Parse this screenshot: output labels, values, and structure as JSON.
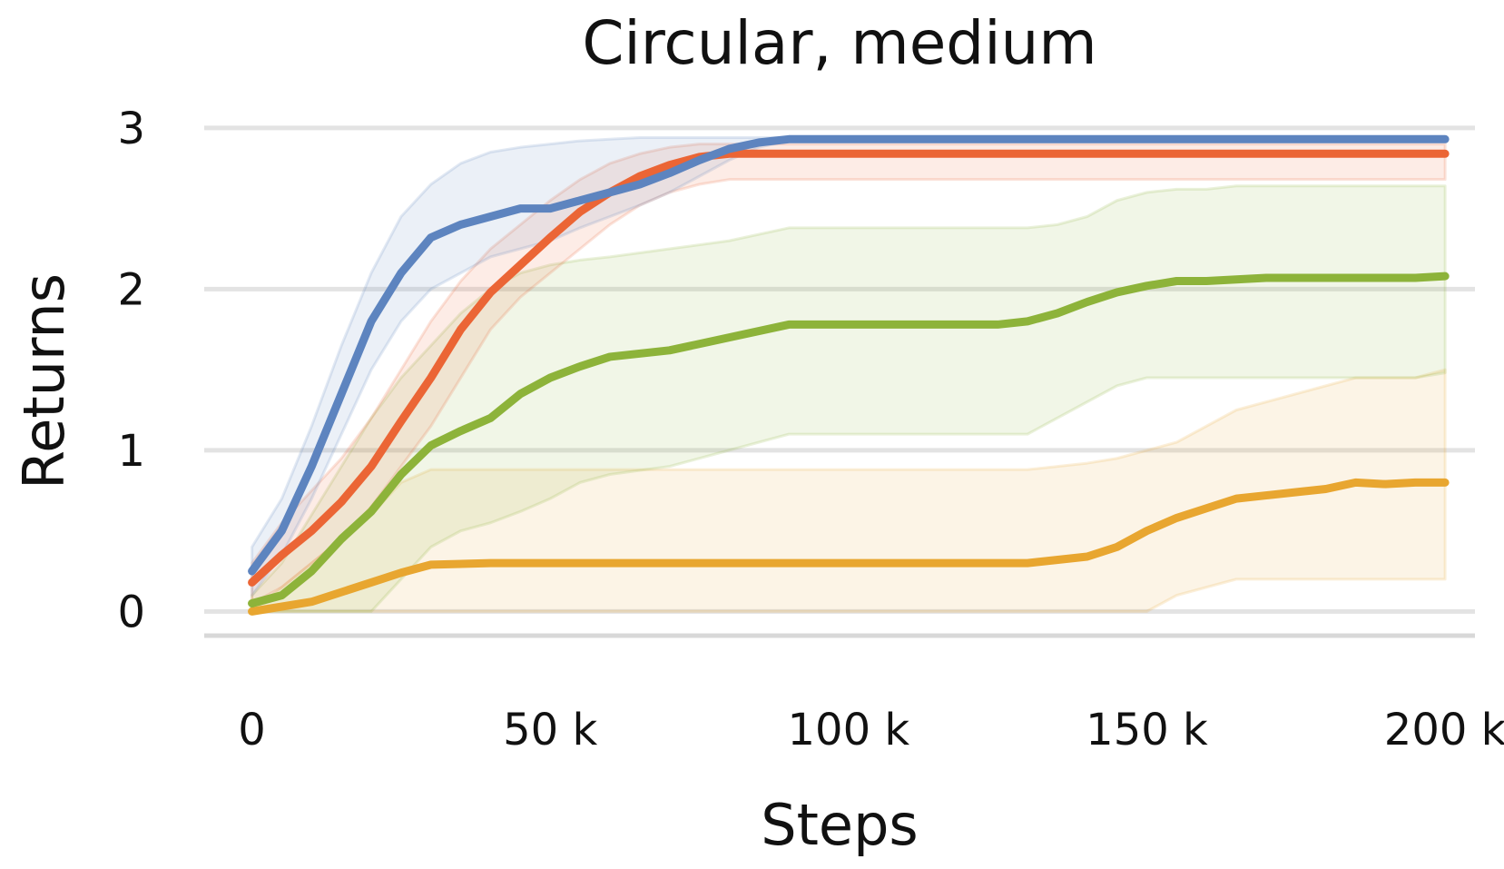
{
  "chart_data": {
    "type": "line",
    "title": "Circular, medium",
    "xlabel": "Steps",
    "ylabel": "Returns",
    "xlim": [
      -8000,
      205000
    ],
    "ylim": [
      -0.15,
      3.05
    ],
    "x_ticks": [
      0,
      50000,
      100000,
      150000,
      200000
    ],
    "x_tick_labels": [
      "0",
      "50 k",
      "100 k",
      "150 k",
      "200 k"
    ],
    "y_ticks": [
      0,
      1,
      2,
      3
    ],
    "y_tick_labels": [
      "0",
      "1",
      "2",
      "3"
    ],
    "grid": true,
    "legend": "none",
    "series": [
      {
        "color": "#e8a630",
        "x": [
          0,
          10000,
          20000,
          25000,
          30000,
          40000,
          50000,
          70000,
          90000,
          110000,
          130000,
          140000,
          145000,
          150000,
          155000,
          160000,
          165000,
          170000,
          175000,
          180000,
          185000,
          190000,
          195000,
          200000
        ],
        "y": [
          0.0,
          0.06,
          0.18,
          0.24,
          0.29,
          0.3,
          0.3,
          0.3,
          0.3,
          0.3,
          0.3,
          0.34,
          0.4,
          0.5,
          0.58,
          0.64,
          0.7,
          0.72,
          0.74,
          0.76,
          0.8,
          0.79,
          0.8,
          0.8
        ],
        "lower": [
          0.0,
          0.0,
          0.0,
          0.0,
          0.0,
          0.0,
          0.0,
          0.0,
          0.0,
          0.0,
          0.0,
          0.0,
          0.0,
          0.0,
          0.1,
          0.15,
          0.2,
          0.2,
          0.2,
          0.2,
          0.2,
          0.2,
          0.2,
          0.2
        ],
        "upper": [
          0.0,
          0.3,
          0.6,
          0.8,
          0.88,
          0.88,
          0.88,
          0.88,
          0.88,
          0.88,
          0.88,
          0.92,
          0.95,
          1.0,
          1.05,
          1.15,
          1.25,
          1.3,
          1.35,
          1.4,
          1.45,
          1.45,
          1.45,
          1.5
        ]
      },
      {
        "color": "#8db33a",
        "x": [
          0,
          5000,
          10000,
          15000,
          20000,
          25000,
          30000,
          35000,
          40000,
          45000,
          50000,
          55000,
          60000,
          70000,
          80000,
          90000,
          100000,
          110000,
          120000,
          125000,
          130000,
          135000,
          140000,
          145000,
          150000,
          155000,
          160000,
          165000,
          170000,
          175000,
          180000,
          185000,
          190000,
          195000,
          200000
        ],
        "y": [
          0.05,
          0.1,
          0.25,
          0.45,
          0.62,
          0.85,
          1.03,
          1.12,
          1.2,
          1.35,
          1.45,
          1.52,
          1.58,
          1.62,
          1.7,
          1.78,
          1.78,
          1.78,
          1.78,
          1.78,
          1.8,
          1.85,
          1.92,
          1.98,
          2.02,
          2.05,
          2.05,
          2.06,
          2.07,
          2.07,
          2.07,
          2.07,
          2.07,
          2.07,
          2.08
        ],
        "lower": [
          0.0,
          0.0,
          0.0,
          0.0,
          0.0,
          0.2,
          0.4,
          0.5,
          0.55,
          0.62,
          0.7,
          0.8,
          0.85,
          0.9,
          1.0,
          1.1,
          1.1,
          1.1,
          1.1,
          1.1,
          1.1,
          1.2,
          1.3,
          1.4,
          1.45,
          1.45,
          1.45,
          1.45,
          1.45,
          1.45,
          1.45,
          1.45,
          1.45,
          1.45,
          1.48
        ],
        "upper": [
          0.1,
          0.3,
          0.6,
          0.9,
          1.2,
          1.45,
          1.65,
          1.85,
          2.0,
          2.1,
          2.15,
          2.18,
          2.2,
          2.25,
          2.3,
          2.38,
          2.38,
          2.38,
          2.38,
          2.38,
          2.38,
          2.4,
          2.45,
          2.55,
          2.6,
          2.62,
          2.62,
          2.64,
          2.64,
          2.64,
          2.64,
          2.64,
          2.64,
          2.64,
          2.64
        ]
      },
      {
        "color": "#eb6535",
        "x": [
          0,
          5000,
          10000,
          15000,
          20000,
          25000,
          30000,
          35000,
          40000,
          45000,
          50000,
          55000,
          60000,
          65000,
          70000,
          75000,
          80000,
          90000,
          100000,
          120000,
          140000,
          160000,
          180000,
          200000
        ],
        "y": [
          0.18,
          0.35,
          0.5,
          0.68,
          0.9,
          1.18,
          1.45,
          1.75,
          1.98,
          2.15,
          2.32,
          2.48,
          2.6,
          2.7,
          2.77,
          2.82,
          2.84,
          2.84,
          2.84,
          2.84,
          2.84,
          2.84,
          2.84,
          2.84
        ],
        "lower": [
          0.05,
          0.15,
          0.3,
          0.45,
          0.65,
          0.9,
          1.15,
          1.45,
          1.75,
          1.95,
          2.1,
          2.25,
          2.4,
          2.52,
          2.6,
          2.65,
          2.68,
          2.68,
          2.68,
          2.68,
          2.68,
          2.68,
          2.68,
          2.68
        ],
        "upper": [
          0.3,
          0.55,
          0.75,
          0.95,
          1.2,
          1.5,
          1.8,
          2.05,
          2.25,
          2.4,
          2.55,
          2.68,
          2.78,
          2.84,
          2.88,
          2.9,
          2.9,
          2.9,
          2.9,
          2.9,
          2.9,
          2.9,
          2.9,
          2.9
        ]
      },
      {
        "color": "#5d84bf",
        "x": [
          0,
          5000,
          10000,
          15000,
          20000,
          25000,
          30000,
          35000,
          40000,
          45000,
          50000,
          55000,
          60000,
          65000,
          70000,
          75000,
          80000,
          85000,
          90000,
          100000,
          120000,
          140000,
          160000,
          180000,
          200000
        ],
        "y": [
          0.25,
          0.5,
          0.9,
          1.35,
          1.8,
          2.1,
          2.32,
          2.4,
          2.45,
          2.5,
          2.5,
          2.55,
          2.6,
          2.65,
          2.72,
          2.8,
          2.87,
          2.91,
          2.93,
          2.93,
          2.93,
          2.93,
          2.93,
          2.93,
          2.93
        ],
        "lower": [
          0.1,
          0.35,
          0.7,
          1.1,
          1.5,
          1.8,
          2.0,
          2.1,
          2.2,
          2.25,
          2.3,
          2.38,
          2.45,
          2.52,
          2.6,
          2.7,
          2.8,
          2.88,
          2.92,
          2.93,
          2.93,
          2.93,
          2.93,
          2.93,
          2.93
        ],
        "upper": [
          0.4,
          0.7,
          1.15,
          1.65,
          2.1,
          2.45,
          2.65,
          2.78,
          2.85,
          2.88,
          2.9,
          2.92,
          2.93,
          2.94,
          2.94,
          2.94,
          2.94,
          2.94,
          2.94,
          2.94,
          2.94,
          2.94,
          2.94,
          2.94,
          2.94
        ]
      }
    ]
  }
}
